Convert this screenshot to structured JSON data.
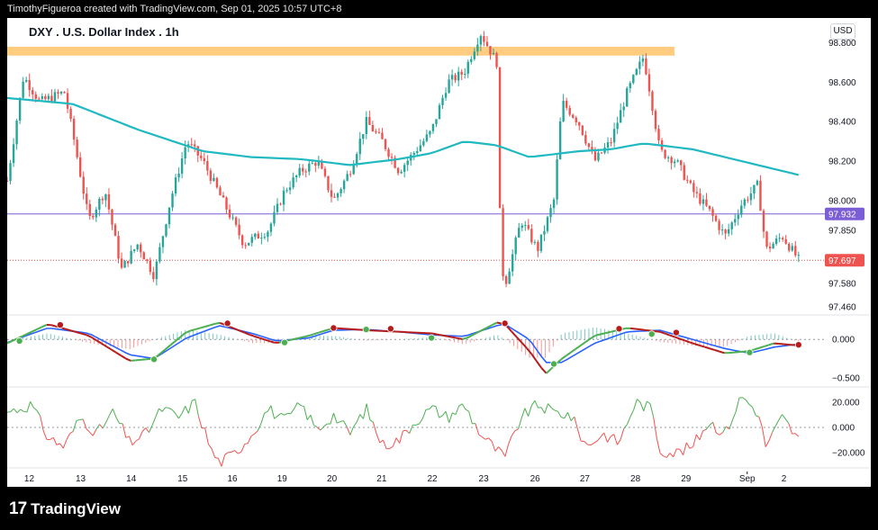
{
  "header": {
    "credit": "TimothyFigueroa created with TradingView.com, Sep 01, 2025 10:57 UTC+8"
  },
  "symbol": {
    "title": "DXY . U.S. Dollar Index . 1h"
  },
  "currency": "USD",
  "footer": {
    "brand": "TradingView",
    "logo_mark": "17"
  },
  "colors": {
    "up": "#26a69a",
    "down": "#ef5350",
    "ma": "#21b9c1",
    "zone": "#ffcc80",
    "hline": "#7b5ed6",
    "last": "#ef5350",
    "osc_fast_up": "#4caf50",
    "osc_fast_down": "#b71c1c",
    "osc_slow": "#2962ff",
    "rsi_up": "#4caf50",
    "rsi_down": "#ef5350"
  },
  "chart_data": [
    {
      "type": "candlestick",
      "title": "DXY . U.S. Dollar Index . 1h",
      "x_tick_labels": [
        "12",
        "13",
        "14",
        "15",
        "16",
        "19",
        "20",
        "21",
        "22",
        "23",
        "26",
        "27",
        "28",
        "29",
        "Sep",
        "2"
      ],
      "y_tick_labels": [
        "98.800",
        "98.600",
        "98.400",
        "98.200",
        "98.000",
        "97.850",
        "97.580",
        "97.460"
      ],
      "ylim": [
        97.42,
        98.88
      ],
      "resistance_zone": [
        98.735,
        98.78
      ],
      "horizontal_line": {
        "value": 97.932,
        "label": "97.932"
      },
      "last_price": {
        "value": 97.697,
        "label": "97.697"
      },
      "moving_average_keypoints": [
        {
          "x": 0.0,
          "y": 98.52
        },
        {
          "x": 0.08,
          "y": 98.49
        },
        {
          "x": 0.16,
          "y": 98.36
        },
        {
          "x": 0.24,
          "y": 98.25
        },
        {
          "x": 0.3,
          "y": 98.22
        },
        {
          "x": 0.36,
          "y": 98.21
        },
        {
          "x": 0.42,
          "y": 98.18
        },
        {
          "x": 0.48,
          "y": 98.21
        },
        {
          "x": 0.52,
          "y": 98.24
        },
        {
          "x": 0.56,
          "y": 98.3
        },
        {
          "x": 0.6,
          "y": 98.28
        },
        {
          "x": 0.64,
          "y": 98.22
        },
        {
          "x": 0.7,
          "y": 98.25
        },
        {
          "x": 0.74,
          "y": 98.26
        },
        {
          "x": 0.78,
          "y": 98.29
        },
        {
          "x": 0.84,
          "y": 98.26
        },
        {
          "x": 0.9,
          "y": 98.2
        },
        {
          "x": 0.97,
          "y": 98.13
        }
      ],
      "price_keypoints": [
        {
          "x": 0.0,
          "y": 98.1
        },
        {
          "x": 0.02,
          "y": 98.63
        },
        {
          "x": 0.04,
          "y": 98.5
        },
        {
          "x": 0.07,
          "y": 98.55
        },
        {
          "x": 0.08,
          "y": 98.35
        },
        {
          "x": 0.1,
          "y": 97.9
        },
        {
          "x": 0.12,
          "y": 98.05
        },
        {
          "x": 0.14,
          "y": 97.65
        },
        {
          "x": 0.16,
          "y": 97.78
        },
        {
          "x": 0.18,
          "y": 97.62
        },
        {
          "x": 0.2,
          "y": 98.0
        },
        {
          "x": 0.22,
          "y": 98.3
        },
        {
          "x": 0.24,
          "y": 98.2
        },
        {
          "x": 0.27,
          "y": 97.95
        },
        {
          "x": 0.29,
          "y": 97.78
        },
        {
          "x": 0.32,
          "y": 97.85
        },
        {
          "x": 0.34,
          "y": 98.05
        },
        {
          "x": 0.36,
          "y": 98.15
        },
        {
          "x": 0.38,
          "y": 98.2
        },
        {
          "x": 0.4,
          "y": 98.0
        },
        {
          "x": 0.42,
          "y": 98.15
        },
        {
          "x": 0.44,
          "y": 98.4
        },
        {
          "x": 0.46,
          "y": 98.3
        },
        {
          "x": 0.48,
          "y": 98.15
        },
        {
          "x": 0.5,
          "y": 98.25
        },
        {
          "x": 0.52,
          "y": 98.35
        },
        {
          "x": 0.54,
          "y": 98.6
        },
        {
          "x": 0.56,
          "y": 98.65
        },
        {
          "x": 0.58,
          "y": 98.85
        },
        {
          "x": 0.6,
          "y": 98.7
        },
        {
          "x": 0.605,
          "y": 97.7
        },
        {
          "x": 0.61,
          "y": 97.57
        },
        {
          "x": 0.63,
          "y": 97.9
        },
        {
          "x": 0.65,
          "y": 97.75
        },
        {
          "x": 0.67,
          "y": 98.0
        },
        {
          "x": 0.68,
          "y": 98.5
        },
        {
          "x": 0.7,
          "y": 98.4
        },
        {
          "x": 0.72,
          "y": 98.2
        },
        {
          "x": 0.74,
          "y": 98.3
        },
        {
          "x": 0.76,
          "y": 98.55
        },
        {
          "x": 0.78,
          "y": 98.73
        },
        {
          "x": 0.79,
          "y": 98.5
        },
        {
          "x": 0.8,
          "y": 98.25
        },
        {
          "x": 0.82,
          "y": 98.2
        },
        {
          "x": 0.84,
          "y": 98.05
        },
        {
          "x": 0.86,
          "y": 97.95
        },
        {
          "x": 0.88,
          "y": 97.82
        },
        {
          "x": 0.9,
          "y": 97.98
        },
        {
          "x": 0.92,
          "y": 98.08
        },
        {
          "x": 0.93,
          "y": 97.75
        },
        {
          "x": 0.95,
          "y": 97.82
        },
        {
          "x": 0.97,
          "y": 97.7
        }
      ]
    },
    {
      "type": "line",
      "series": [
        {
          "role": "fast",
          "keypoints": [
            {
              "x": 0.0,
              "y": -0.05
            },
            {
              "x": 0.05,
              "y": 0.2
            },
            {
              "x": 0.1,
              "y": 0.05
            },
            {
              "x": 0.15,
              "y": -0.28
            },
            {
              "x": 0.18,
              "y": -0.25
            },
            {
              "x": 0.22,
              "y": 0.1
            },
            {
              "x": 0.26,
              "y": 0.22
            },
            {
              "x": 0.3,
              "y": 0.05
            },
            {
              "x": 0.33,
              "y": -0.05
            },
            {
              "x": 0.37,
              "y": 0.05
            },
            {
              "x": 0.4,
              "y": 0.15
            },
            {
              "x": 0.44,
              "y": 0.12
            },
            {
              "x": 0.48,
              "y": 0.1
            },
            {
              "x": 0.52,
              "y": 0.08
            },
            {
              "x": 0.56,
              "y": 0.0
            },
            {
              "x": 0.6,
              "y": 0.22
            },
            {
              "x": 0.61,
              "y": 0.2
            },
            {
              "x": 0.64,
              "y": -0.15
            },
            {
              "x": 0.66,
              "y": -0.45
            },
            {
              "x": 0.68,
              "y": -0.25
            },
            {
              "x": 0.72,
              "y": 0.05
            },
            {
              "x": 0.76,
              "y": 0.15
            },
            {
              "x": 0.8,
              "y": 0.1
            },
            {
              "x": 0.84,
              "y": -0.05
            },
            {
              "x": 0.88,
              "y": -0.18
            },
            {
              "x": 0.91,
              "y": -0.15
            },
            {
              "x": 0.94,
              "y": -0.05
            },
            {
              "x": 0.97,
              "y": -0.08
            }
          ]
        },
        {
          "role": "slow",
          "keypoints": [
            {
              "x": 0.0,
              "y": -0.04
            },
            {
              "x": 0.05,
              "y": 0.15
            },
            {
              "x": 0.1,
              "y": 0.08
            },
            {
              "x": 0.15,
              "y": -0.2
            },
            {
              "x": 0.18,
              "y": -0.25
            },
            {
              "x": 0.22,
              "y": 0.02
            },
            {
              "x": 0.26,
              "y": 0.18
            },
            {
              "x": 0.3,
              "y": 0.08
            },
            {
              "x": 0.33,
              "y": -0.02
            },
            {
              "x": 0.37,
              "y": 0.02
            },
            {
              "x": 0.4,
              "y": 0.12
            },
            {
              "x": 0.44,
              "y": 0.13
            },
            {
              "x": 0.48,
              "y": 0.1
            },
            {
              "x": 0.52,
              "y": 0.06
            },
            {
              "x": 0.56,
              "y": 0.04
            },
            {
              "x": 0.6,
              "y": 0.18
            },
            {
              "x": 0.61,
              "y": 0.2
            },
            {
              "x": 0.64,
              "y": 0.0
            },
            {
              "x": 0.66,
              "y": -0.3
            },
            {
              "x": 0.68,
              "y": -0.3
            },
            {
              "x": 0.72,
              "y": -0.05
            },
            {
              "x": 0.76,
              "y": 0.1
            },
            {
              "x": 0.8,
              "y": 0.12
            },
            {
              "x": 0.84,
              "y": 0.0
            },
            {
              "x": 0.88,
              "y": -0.12
            },
            {
              "x": 0.91,
              "y": -0.18
            },
            {
              "x": 0.94,
              "y": -0.1
            },
            {
              "x": 0.97,
              "y": -0.06
            }
          ]
        }
      ],
      "crossovers": [
        {
          "x": 0.015,
          "y": -0.02,
          "dir": "up"
        },
        {
          "x": 0.065,
          "y": 0.19,
          "dir": "down"
        },
        {
          "x": 0.18,
          "y": -0.26,
          "dir": "up"
        },
        {
          "x": 0.27,
          "y": 0.21,
          "dir": "down"
        },
        {
          "x": 0.34,
          "y": -0.04,
          "dir": "up"
        },
        {
          "x": 0.4,
          "y": 0.15,
          "dir": "down"
        },
        {
          "x": 0.44,
          "y": 0.13,
          "dir": "up"
        },
        {
          "x": 0.47,
          "y": 0.14,
          "dir": "down"
        },
        {
          "x": 0.52,
          "y": 0.02,
          "dir": "up"
        },
        {
          "x": 0.61,
          "y": 0.21,
          "dir": "down"
        },
        {
          "x": 0.67,
          "y": -0.32,
          "dir": "up"
        },
        {
          "x": 0.75,
          "y": 0.14,
          "dir": "down"
        },
        {
          "x": 0.79,
          "y": 0.07,
          "dir": "up"
        },
        {
          "x": 0.82,
          "y": 0.09,
          "dir": "down"
        },
        {
          "x": 0.91,
          "y": -0.17,
          "dir": "up"
        },
        {
          "x": 0.97,
          "y": -0.07,
          "dir": "down"
        }
      ],
      "y_tick_labels": [
        "0.000",
        "−0.500"
      ],
      "ylim": [
        -0.62,
        0.32
      ]
    },
    {
      "type": "line",
      "y_tick_labels": [
        "20.000",
        "0.000",
        "−20.000"
      ],
      "ylim": [
        -32,
        32
      ],
      "keypoints": [
        {
          "x": 0.0,
          "y": 12
        },
        {
          "x": 0.03,
          "y": 18
        },
        {
          "x": 0.05,
          "y": -8
        },
        {
          "x": 0.07,
          "y": -15
        },
        {
          "x": 0.09,
          "y": 8
        },
        {
          "x": 0.11,
          "y": -5
        },
        {
          "x": 0.13,
          "y": 12
        },
        {
          "x": 0.15,
          "y": -12
        },
        {
          "x": 0.17,
          "y": -5
        },
        {
          "x": 0.19,
          "y": 15
        },
        {
          "x": 0.21,
          "y": 8
        },
        {
          "x": 0.23,
          "y": 20
        },
        {
          "x": 0.25,
          "y": -18
        },
        {
          "x": 0.26,
          "y": -28
        },
        {
          "x": 0.28,
          "y": -20
        },
        {
          "x": 0.3,
          "y": -5
        },
        {
          "x": 0.32,
          "y": 15
        },
        {
          "x": 0.34,
          "y": 5
        },
        {
          "x": 0.36,
          "y": 18
        },
        {
          "x": 0.38,
          "y": -2
        },
        {
          "x": 0.4,
          "y": 10
        },
        {
          "x": 0.42,
          "y": -5
        },
        {
          "x": 0.44,
          "y": 15
        },
        {
          "x": 0.46,
          "y": -14
        },
        {
          "x": 0.48,
          "y": -10
        },
        {
          "x": 0.5,
          "y": 5
        },
        {
          "x": 0.52,
          "y": 15
        },
        {
          "x": 0.54,
          "y": 8
        },
        {
          "x": 0.56,
          "y": 18
        },
        {
          "x": 0.58,
          "y": -5
        },
        {
          "x": 0.6,
          "y": -18
        },
        {
          "x": 0.61,
          "y": -24
        },
        {
          "x": 0.63,
          "y": 8
        },
        {
          "x": 0.65,
          "y": 18
        },
        {
          "x": 0.67,
          "y": 12
        },
        {
          "x": 0.69,
          "y": 10
        },
        {
          "x": 0.71,
          "y": -15
        },
        {
          "x": 0.73,
          "y": -5
        },
        {
          "x": 0.75,
          "y": -12
        },
        {
          "x": 0.77,
          "y": 20
        },
        {
          "x": 0.79,
          "y": 15
        },
        {
          "x": 0.8,
          "y": -18
        },
        {
          "x": 0.82,
          "y": -20
        },
        {
          "x": 0.84,
          "y": -15
        },
        {
          "x": 0.86,
          "y": 5
        },
        {
          "x": 0.88,
          "y": -5
        },
        {
          "x": 0.9,
          "y": 25
        },
        {
          "x": 0.92,
          "y": 12
        },
        {
          "x": 0.93,
          "y": -15
        },
        {
          "x": 0.95,
          "y": 8
        },
        {
          "x": 0.97,
          "y": -10
        }
      ]
    }
  ]
}
